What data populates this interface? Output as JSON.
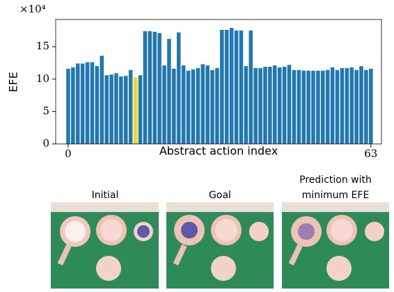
{
  "chart_data": {
    "type": "bar",
    "ylabel": "EFE",
    "xlabel": "Abstract action index",
    "offset_label": "×10⁴",
    "x": [
      0,
      1,
      2,
      3,
      4,
      5,
      6,
      7,
      8,
      9,
      10,
      11,
      12,
      13,
      14,
      15,
      16,
      17,
      18,
      19,
      20,
      21,
      22,
      23,
      24,
      25,
      26,
      27,
      28,
      29,
      30,
      31,
      32,
      33,
      34,
      35,
      36,
      37,
      38,
      39,
      40,
      41,
      42,
      43,
      44,
      45,
      46,
      47,
      48,
      49,
      50,
      51,
      52,
      53,
      54,
      55,
      56,
      57,
      58,
      59,
      60,
      61,
      62,
      63
    ],
    "values": [
      11.6,
      11.8,
      12.4,
      12.4,
      12.6,
      12.6,
      12.0,
      13.6,
      10.6,
      10.7,
      10.9,
      10.4,
      10.5,
      11.4,
      10.3,
      10.6,
      17.4,
      17.4,
      17.3,
      17.1,
      12.1,
      16.2,
      11.6,
      17.2,
      12.1,
      11.3,
      11.5,
      11.7,
      12.3,
      12.1,
      11.4,
      11.7,
      17.6,
      17.6,
      17.9,
      17.5,
      17.5,
      12.0,
      17.5,
      11.7,
      11.7,
      11.9,
      11.9,
      12.1,
      11.8,
      11.9,
      12.2,
      11.4,
      11.4,
      11.3,
      11.3,
      11.3,
      11.3,
      11.3,
      11.4,
      11.8,
      11.4,
      11.7,
      11.7,
      11.8,
      11.4,
      12.0,
      11.4,
      11.6
    ],
    "colors": [
      "#1f77b4",
      "#1f77b4",
      "#1f77b4",
      "#1f77b4",
      "#1f77b4",
      "#1f77b4",
      "#1f77b4",
      "#1f77b4",
      "#1f77b4",
      "#1f77b4",
      "#1f77b4",
      "#1f77b4",
      "#1f77b4",
      "#1f77b4",
      "#f2d61b",
      "#1f77b4",
      "#1f77b4",
      "#1f77b4",
      "#1f77b4",
      "#1f77b4",
      "#1f77b4",
      "#1f77b4",
      "#1f77b4",
      "#1f77b4",
      "#1f77b4",
      "#1f77b4",
      "#1f77b4",
      "#1f77b4",
      "#1f77b4",
      "#1f77b4",
      "#1f77b4",
      "#1f77b4",
      "#1f77b4",
      "#1f77b4",
      "#1f77b4",
      "#1f77b4",
      "#1f77b4",
      "#1f77b4",
      "#1f77b4",
      "#1f77b4",
      "#1f77b4",
      "#1f77b4",
      "#1f77b4",
      "#1f77b4",
      "#1f77b4",
      "#1f77b4",
      "#1f77b4",
      "#1f77b4",
      "#1f77b4",
      "#1f77b4",
      "#1f77b4",
      "#1f77b4",
      "#1f77b4",
      "#1f77b4",
      "#1f77b4",
      "#1f77b4",
      "#1f77b4",
      "#1f77b4",
      "#1f77b4",
      "#1f77b4",
      "#1f77b4",
      "#1f77b4",
      "#1f77b4",
      "#1f77b4"
    ],
    "xlim": [
      -2.6,
      65.2
    ],
    "xticks": [
      0,
      63
    ],
    "ylim": [
      0,
      19.2
    ],
    "yticks": [
      0,
      5,
      10,
      15
    ]
  },
  "panels": [
    {
      "caption": "Initial"
    },
    {
      "caption": "Goal"
    },
    {
      "caption": "Prediction with minimum EFE"
    }
  ]
}
